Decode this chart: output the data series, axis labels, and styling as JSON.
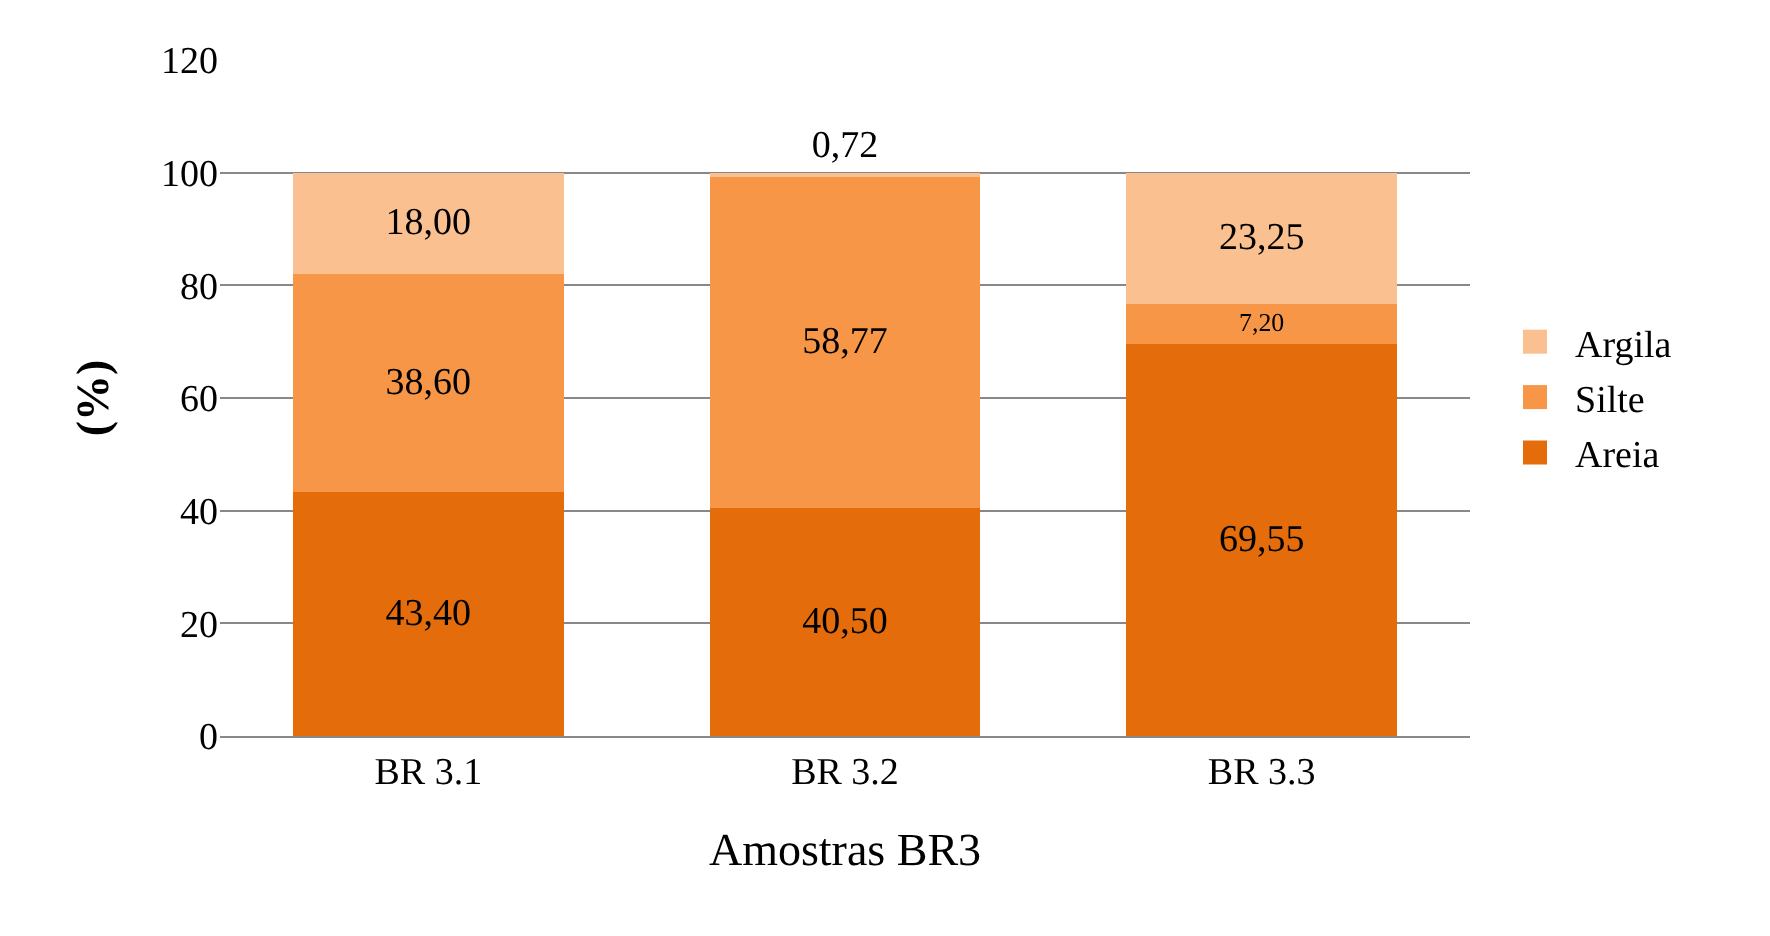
{
  "chart_data": {
    "type": "bar",
    "stacked": true,
    "xlabel": "Amostras BR3",
    "ylabel": "(%)",
    "categories": [
      "BR 3.1",
      "BR 3.2",
      "BR 3.3"
    ],
    "series": [
      {
        "name": "Areia",
        "color": "#e46c0a",
        "values": [
          43.4,
          40.5,
          69.55
        ],
        "value_labels": [
          "43,40",
          "40,50",
          "69,55"
        ]
      },
      {
        "name": "Silte",
        "color": "#f79646",
        "values": [
          38.6,
          58.77,
          7.2
        ],
        "value_labels": [
          "38,60",
          "58,77",
          "7,20"
        ]
      },
      {
        "name": "Argila",
        "color": "#fac090",
        "values": [
          18.0,
          0.72,
          23.25
        ],
        "value_labels": [
          "18,00",
          "0,72",
          "23,25"
        ]
      }
    ],
    "ylim": [
      0,
      120
    ],
    "yticks": [
      0,
      20,
      40,
      60,
      80,
      100,
      120
    ],
    "grid": "y",
    "legend": "right"
  }
}
